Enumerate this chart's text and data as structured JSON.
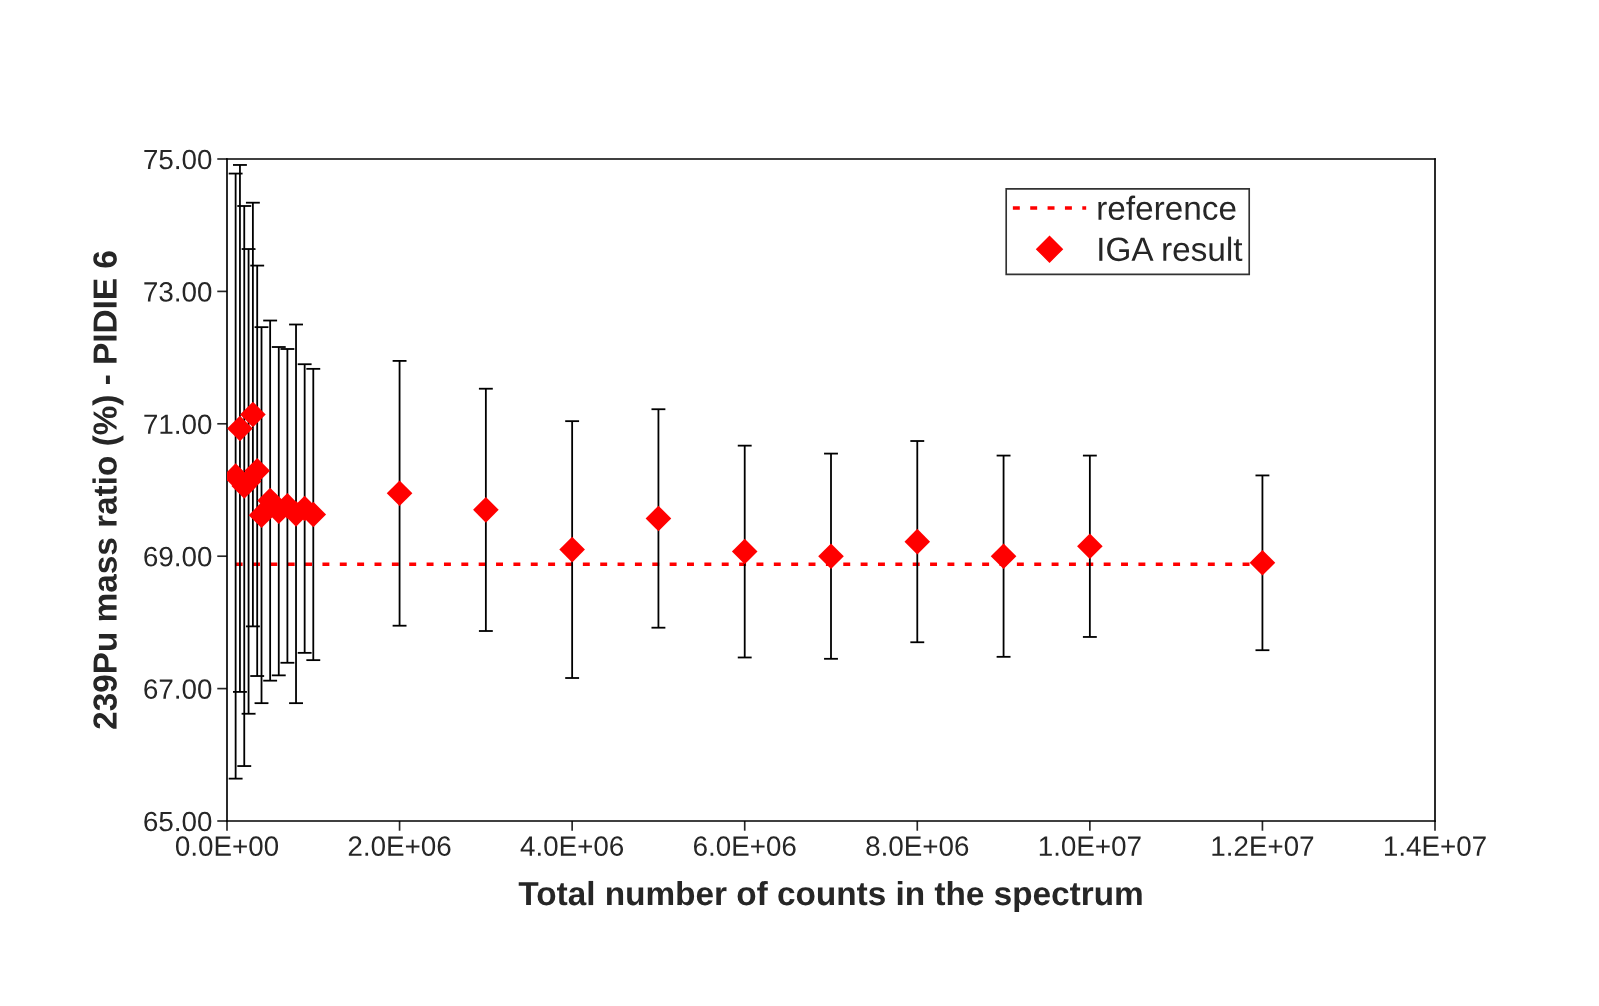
{
  "chart_data": {
    "type": "scatter",
    "xlabel": "Total number of counts in the spectrum",
    "ylabel": "239Pu mass ratio (%) - PIDIE 6",
    "x": [
      100000,
      150000,
      200000,
      250000,
      300000,
      350000,
      400000,
      500000,
      600000,
      700000,
      800000,
      900000,
      1000000,
      2000000,
      3000000,
      4000000,
      5000000,
      6000000,
      7000000,
      8000000,
      9000000,
      10000000,
      12000000
    ],
    "series": [
      {
        "name": "IGA result",
        "color": "#ff0000",
        "marker": "diamond",
        "values": [
          70.21,
          70.93,
          70.06,
          70.13,
          71.14,
          70.29,
          69.62,
          69.84,
          69.68,
          69.76,
          69.64,
          69.72,
          69.63,
          69.95,
          69.7,
          69.1,
          69.57,
          69.07,
          69.0,
          69.22,
          69.0,
          69.15,
          68.9
        ],
        "errors": [
          4.57,
          3.98,
          4.23,
          3.51,
          3.2,
          3.1,
          2.84,
          2.72,
          2.48,
          2.37,
          2.86,
          2.18,
          2.2,
          2.0,
          1.83,
          1.94,
          1.65,
          1.6,
          1.55,
          1.52,
          1.52,
          1.37,
          1.32
        ]
      }
    ],
    "ref_lines": [
      {
        "axis": "y",
        "value": 68.88,
        "label": "reference",
        "color": "#ff0000",
        "line_style": "dotted"
      }
    ],
    "xlim": [
      0,
      14000000
    ],
    "xticks": [
      {
        "value": 0,
        "label": "0.0E+00"
      },
      {
        "value": 2000000,
        "label": "2.0E+06"
      },
      {
        "value": 4000000,
        "label": "4.0E+06"
      },
      {
        "value": 6000000,
        "label": "6.0E+06"
      },
      {
        "value": 8000000,
        "label": "8.0E+06"
      },
      {
        "value": 10000000,
        "label": "1.0E+07"
      },
      {
        "value": 12000000,
        "label": "1.2E+07"
      },
      {
        "value": 14000000,
        "label": "1.4E+07"
      }
    ],
    "ylim": [
      65,
      75
    ],
    "yticks": [
      {
        "value": 65,
        "label": "65.00"
      },
      {
        "value": 67,
        "label": "67.00"
      },
      {
        "value": 69,
        "label": "69.00"
      },
      {
        "value": 71,
        "label": "71.00"
      },
      {
        "value": 73,
        "label": "73.00"
      },
      {
        "value": 75,
        "label": "75.00"
      }
    ],
    "grid": false,
    "legend": "top right"
  }
}
